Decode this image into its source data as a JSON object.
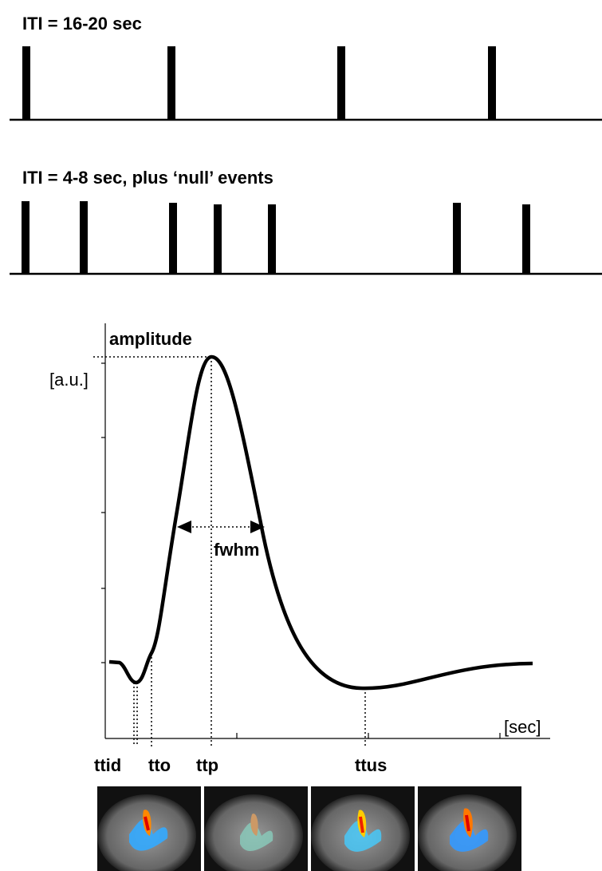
{
  "panels": {
    "sparse_title": "ITI = 16-20 sec",
    "rapid_title": "ITI = 4-8 sec, plus ‘null’ events"
  },
  "hrf": {
    "amplitude_label": "amplitude",
    "y_unit": "[a.u.]",
    "fwhm_label": "fwhm",
    "x_unit": "[sec]",
    "markers": [
      "ttid",
      "tto",
      "ttp",
      "ttus"
    ]
  }
}
